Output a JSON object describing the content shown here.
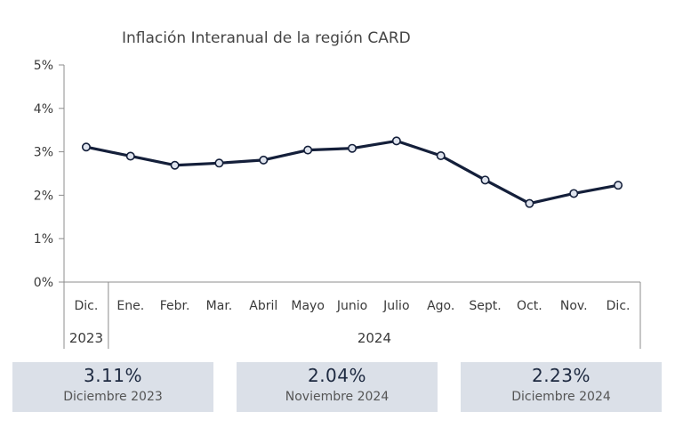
{
  "chart_data": {
    "type": "line",
    "title": "Inflación Interanual de la región CARD",
    "categories": [
      "Dic.",
      "Ene.",
      "Febr.",
      "Mar.",
      "Abril",
      "Mayo",
      "Junio",
      "Julio",
      "Ago.",
      "Sept.",
      "Oct.",
      "Nov.",
      "Dic."
    ],
    "year_groups": [
      {
        "label": "2023",
        "span": 1
      },
      {
        "label": "2024",
        "span": 12
      }
    ],
    "values": [
      3.11,
      2.9,
      2.69,
      2.74,
      2.81,
      3.04,
      3.08,
      3.25,
      2.91,
      2.35,
      1.81,
      2.04,
      2.23
    ],
    "ylim": [
      0,
      5
    ],
    "yticks": [
      "0%",
      "1%",
      "2%",
      "3%",
      "4%",
      "5%"
    ],
    "grid": false,
    "colors": {
      "line": "#141f3a",
      "marker_fill": "#dfe4ee",
      "axis": "#8c8c8c"
    }
  },
  "cards": [
    {
      "value": "3.11%",
      "label": "Diciembre 2023"
    },
    {
      "value": "2.04%",
      "label": "Noviembre 2024"
    },
    {
      "value": "2.23%",
      "label": "Diciembre 2024"
    }
  ]
}
